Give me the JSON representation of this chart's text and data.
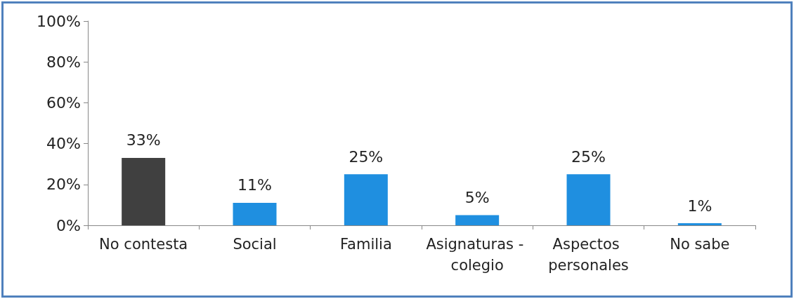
{
  "chart_data": {
    "type": "bar",
    "categories": [
      "No contesta",
      "Social",
      "Familia",
      "Asignaturas - colegio",
      "Aspectos personales",
      "No sabe"
    ],
    "values": [
      33,
      11,
      25,
      5,
      25,
      1
    ],
    "colors": [
      "#404040",
      "#1f8fe0",
      "#1f8fe0",
      "#1f8fe0",
      "#1f8fe0",
      "#1f8fe0"
    ],
    "value_labels": [
      "33%",
      "11%",
      "25%",
      "5%",
      "25%",
      "1%"
    ],
    "ylim": [
      0,
      100
    ],
    "yticks": [
      {
        "value": 0,
        "label": "0%"
      },
      {
        "value": 20,
        "label": "20%"
      },
      {
        "value": 40,
        "label": "40%"
      },
      {
        "value": 60,
        "label": "60%"
      },
      {
        "value": 80,
        "label": "80%"
      },
      {
        "value": 100,
        "label": "100%"
      }
    ],
    "grid": false
  }
}
